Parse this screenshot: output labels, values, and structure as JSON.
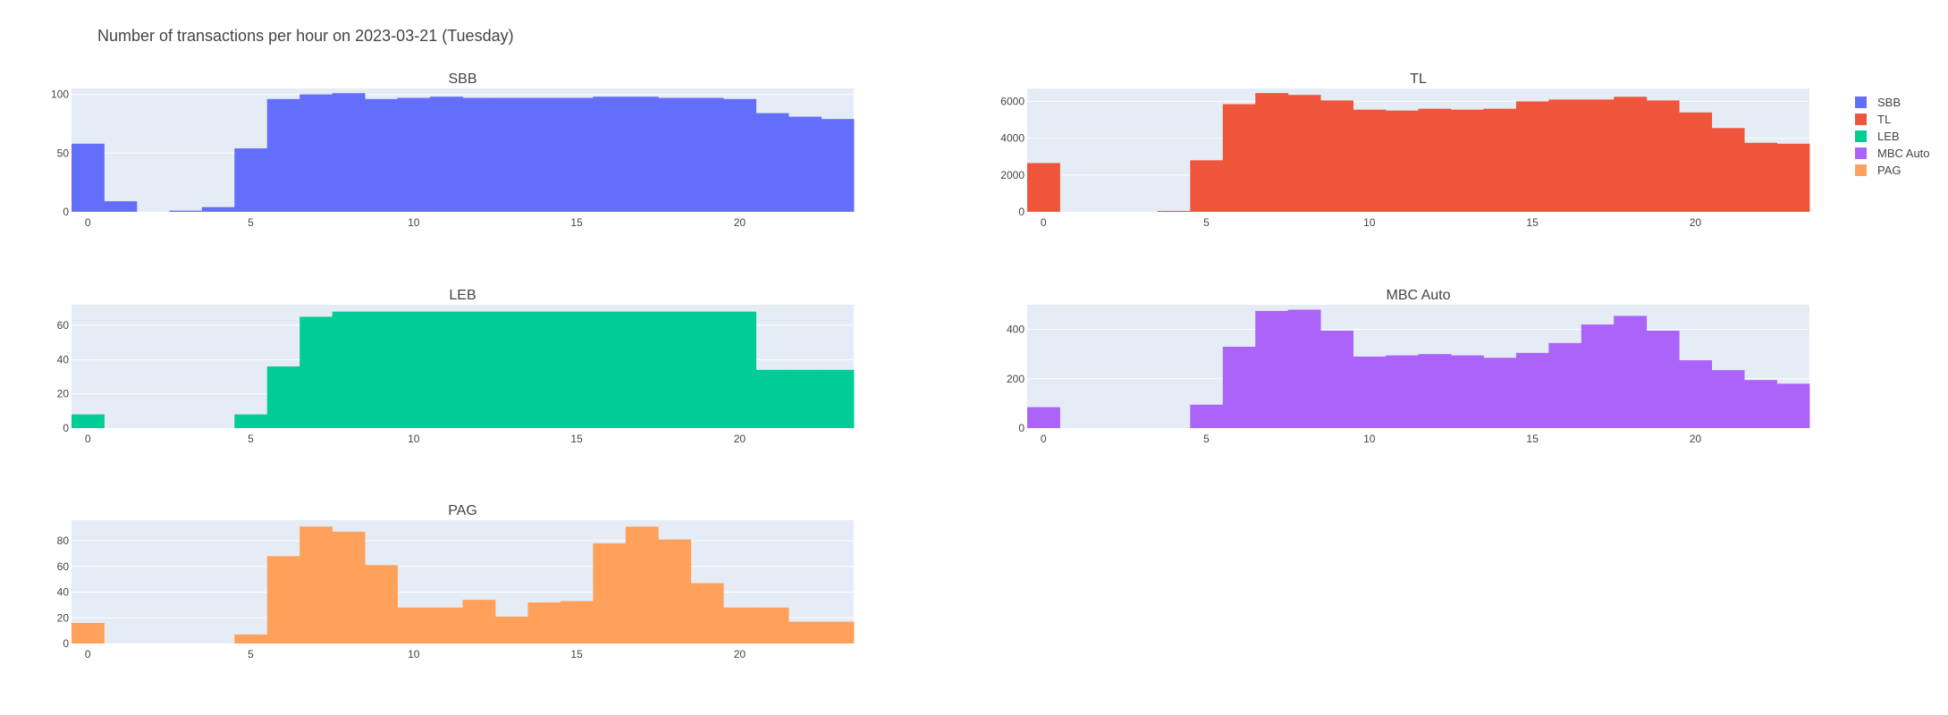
{
  "title": "Number of transactions per hour on 2023-03-21 (Tuesday)",
  "colors": {
    "plot_background": "#e5ecf6",
    "gridline": "#ffffff",
    "text": "#444444"
  },
  "chart_data": [
    {
      "type": "bar",
      "title": "SBB",
      "color": "#636efa",
      "xlim": [
        -0.5,
        23.5
      ],
      "ylim": [
        0,
        105
      ],
      "xticks": [
        0,
        5,
        10,
        15,
        20
      ],
      "yticks": [
        0,
        50,
        100
      ],
      "x": [
        0,
        1,
        2,
        3,
        4,
        5,
        6,
        7,
        8,
        9,
        10,
        11,
        12,
        13,
        14,
        15,
        16,
        17,
        18,
        19,
        20,
        21,
        22,
        23
      ],
      "values": [
        58,
        9,
        0,
        1,
        4,
        54,
        96,
        100,
        101,
        96,
        97,
        98,
        97,
        97,
        97,
        97,
        98,
        98,
        97,
        97,
        96,
        84,
        81,
        79
      ]
    },
    {
      "type": "bar",
      "title": "TL",
      "color": "#ef553b",
      "xlim": [
        -0.5,
        23.5
      ],
      "ylim": [
        0,
        6700
      ],
      "xticks": [
        0,
        5,
        10,
        15,
        20
      ],
      "yticks": [
        0,
        2000,
        4000,
        6000
      ],
      "x": [
        0,
        1,
        2,
        3,
        4,
        5,
        6,
        7,
        8,
        9,
        10,
        11,
        12,
        13,
        14,
        15,
        16,
        17,
        18,
        19,
        20,
        21,
        22,
        23
      ],
      "values": [
        2650,
        0,
        0,
        0,
        50,
        2800,
        5850,
        6450,
        6350,
        6050,
        5550,
        5500,
        5600,
        5550,
        5600,
        6000,
        6100,
        6100,
        6250,
        6050,
        5400,
        4550,
        3750,
        3700
      ]
    },
    {
      "type": "bar",
      "title": "LEB",
      "color": "#00cc96",
      "xlim": [
        -0.5,
        23.5
      ],
      "ylim": [
        0,
        72
      ],
      "xticks": [
        0,
        5,
        10,
        15,
        20
      ],
      "yticks": [
        0,
        20,
        40,
        60
      ],
      "x": [
        0,
        1,
        2,
        3,
        4,
        5,
        6,
        7,
        8,
        9,
        10,
        11,
        12,
        13,
        14,
        15,
        16,
        17,
        18,
        19,
        20,
        21,
        22,
        23
      ],
      "values": [
        8,
        0,
        0,
        0,
        0,
        8,
        36,
        65,
        68,
        68,
        68,
        68,
        68,
        68,
        68,
        68,
        68,
        68,
        68,
        68,
        68,
        34,
        34,
        34
      ]
    },
    {
      "type": "bar",
      "title": "MBC Auto",
      "color": "#ab63fa",
      "xlim": [
        -0.5,
        23.5
      ],
      "ylim": [
        0,
        500
      ],
      "xticks": [
        0,
        5,
        10,
        15,
        20
      ],
      "yticks": [
        0,
        200,
        400
      ],
      "x": [
        0,
        1,
        2,
        3,
        4,
        5,
        6,
        7,
        8,
        9,
        10,
        11,
        12,
        13,
        14,
        15,
        16,
        17,
        18,
        19,
        20,
        21,
        22,
        23
      ],
      "values": [
        85,
        0,
        0,
        0,
        0,
        95,
        330,
        475,
        480,
        395,
        290,
        295,
        300,
        295,
        285,
        305,
        345,
        420,
        455,
        395,
        275,
        235,
        195,
        180
      ]
    },
    {
      "type": "bar",
      "title": "PAG",
      "color": "#ffa15a",
      "xlim": [
        -0.5,
        23.5
      ],
      "ylim": [
        0,
        96
      ],
      "xticks": [
        0,
        5,
        10,
        15,
        20
      ],
      "yticks": [
        0,
        20,
        40,
        60,
        80
      ],
      "x": [
        0,
        1,
        2,
        3,
        4,
        5,
        6,
        7,
        8,
        9,
        10,
        11,
        12,
        13,
        14,
        15,
        16,
        17,
        18,
        19,
        20,
        21,
        22,
        23
      ],
      "values": [
        16,
        0,
        0,
        0,
        0,
        7,
        68,
        91,
        87,
        61,
        28,
        28,
        34,
        21,
        32,
        33,
        78,
        91,
        81,
        47,
        28,
        28,
        17,
        17
      ]
    }
  ],
  "legend": {
    "placement": "top-right",
    "items": [
      {
        "label": "SBB",
        "color": "#636efa"
      },
      {
        "label": "TL",
        "color": "#ef553b"
      },
      {
        "label": "LEB",
        "color": "#00cc96"
      },
      {
        "label": "MBC Auto",
        "color": "#ab63fa"
      },
      {
        "label": "PAG",
        "color": "#ffa15a"
      }
    ]
  }
}
